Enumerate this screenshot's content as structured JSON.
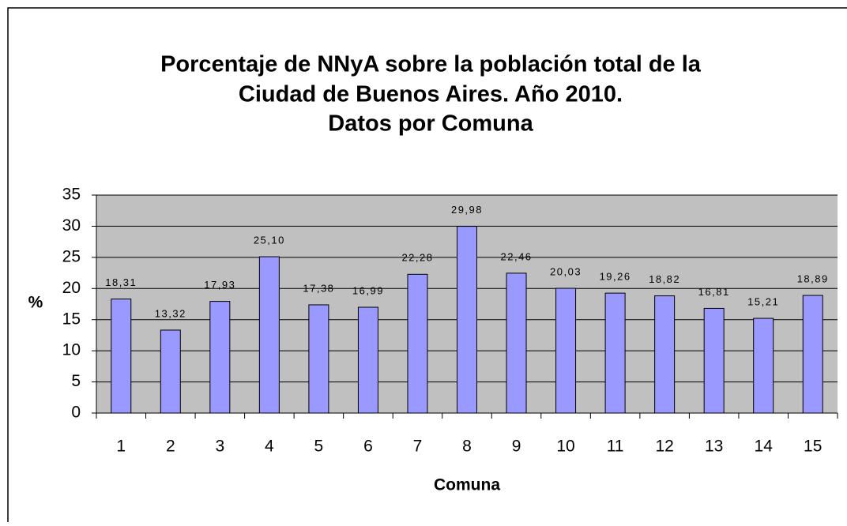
{
  "chart_data": {
    "type": "bar",
    "title": [
      "Porcentaje de NNyA sobre la población total de la",
      "Ciudad de Buenos Aires. Año 2010.",
      "Datos por Comuna"
    ],
    "x_label": "Comuna",
    "y_label": "%",
    "categories": [
      "1",
      "2",
      "3",
      "4",
      "5",
      "6",
      "7",
      "8",
      "9",
      "10",
      "11",
      "12",
      "13",
      "14",
      "15"
    ],
    "values": [
      18.31,
      13.32,
      17.93,
      25.1,
      17.38,
      16.99,
      22.28,
      29.98,
      22.46,
      20.03,
      19.26,
      18.82,
      16.81,
      15.21,
      18.89
    ],
    "value_labels": [
      "18,31",
      "13,32",
      "17,93",
      "25,10",
      "17,38",
      "16,99",
      "22,28",
      "29,98",
      "22,46",
      "20,03",
      "19,26",
      "18,82",
      "16,81",
      "15,21",
      "18,89"
    ],
    "color": "#9999ff",
    "ylim": [
      0,
      35
    ],
    "yticks": [
      0,
      5,
      10,
      15,
      20,
      25,
      30,
      35
    ],
    "grid": true
  }
}
